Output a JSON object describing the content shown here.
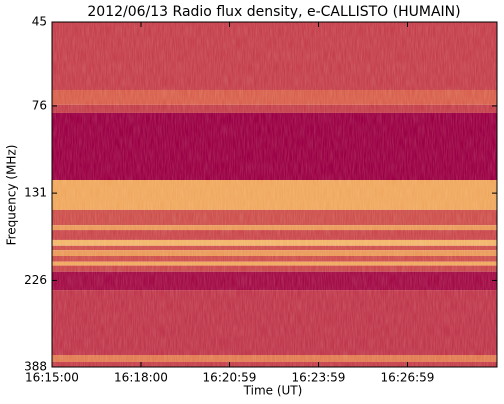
{
  "chart_data": {
    "type": "spectrogram",
    "title": "2012/06/13  Radio flux density, e-CALLISTO (HUMAIN)",
    "xlabel": "Time (UT)",
    "ylabel": "Frequency (MHz)",
    "xlim": [
      "16:15:00",
      "16:30:00"
    ],
    "xticks": [
      "16:15:00",
      "16:18:00",
      "16:20:59",
      "16:23:59",
      "16:26:59"
    ],
    "ylim": [
      45,
      388
    ],
    "yscale": "log",
    "yinverted": true,
    "yticks": [
      45,
      76,
      131,
      226,
      388
    ],
    "colormap": [
      "#9c0046",
      "#c0384e",
      "#d8604e",
      "#f0a860",
      "#fff0a0"
    ],
    "bands": [
      {
        "from": 45,
        "to": 68.8,
        "level": 0.3
      },
      {
        "from": 68.8,
        "to": 75.5,
        "level": 0.5
      },
      {
        "from": 75.5,
        "to": 79.4,
        "level": 0.3
      },
      {
        "from": 79.4,
        "to": 120.7,
        "level": 0
      },
      {
        "from": 120.7,
        "to": 145.5,
        "level": 0.75
      },
      {
        "from": 145.5,
        "to": 160,
        "level": 0.4
      },
      {
        "from": 160,
        "to": 165,
        "level": 0.7
      },
      {
        "from": 165,
        "to": 175.5,
        "level": 0.35
      },
      {
        "from": 175.5,
        "to": 182,
        "level": 0.8
      },
      {
        "from": 182,
        "to": 187,
        "level": 0.4
      },
      {
        "from": 187,
        "to": 194,
        "level": 0.7
      },
      {
        "from": 194,
        "to": 201,
        "level": 0.4
      },
      {
        "from": 201,
        "to": 206,
        "level": 0.75
      },
      {
        "from": 206,
        "to": 214,
        "level": 0.35
      },
      {
        "from": 214,
        "to": 240,
        "level": 0.05
      },
      {
        "from": 240,
        "to": 360,
        "level": 0.25
      },
      {
        "from": 360,
        "to": 376,
        "level": 0.6
      },
      {
        "from": 376,
        "to": 388,
        "level": 0.3
      }
    ]
  }
}
